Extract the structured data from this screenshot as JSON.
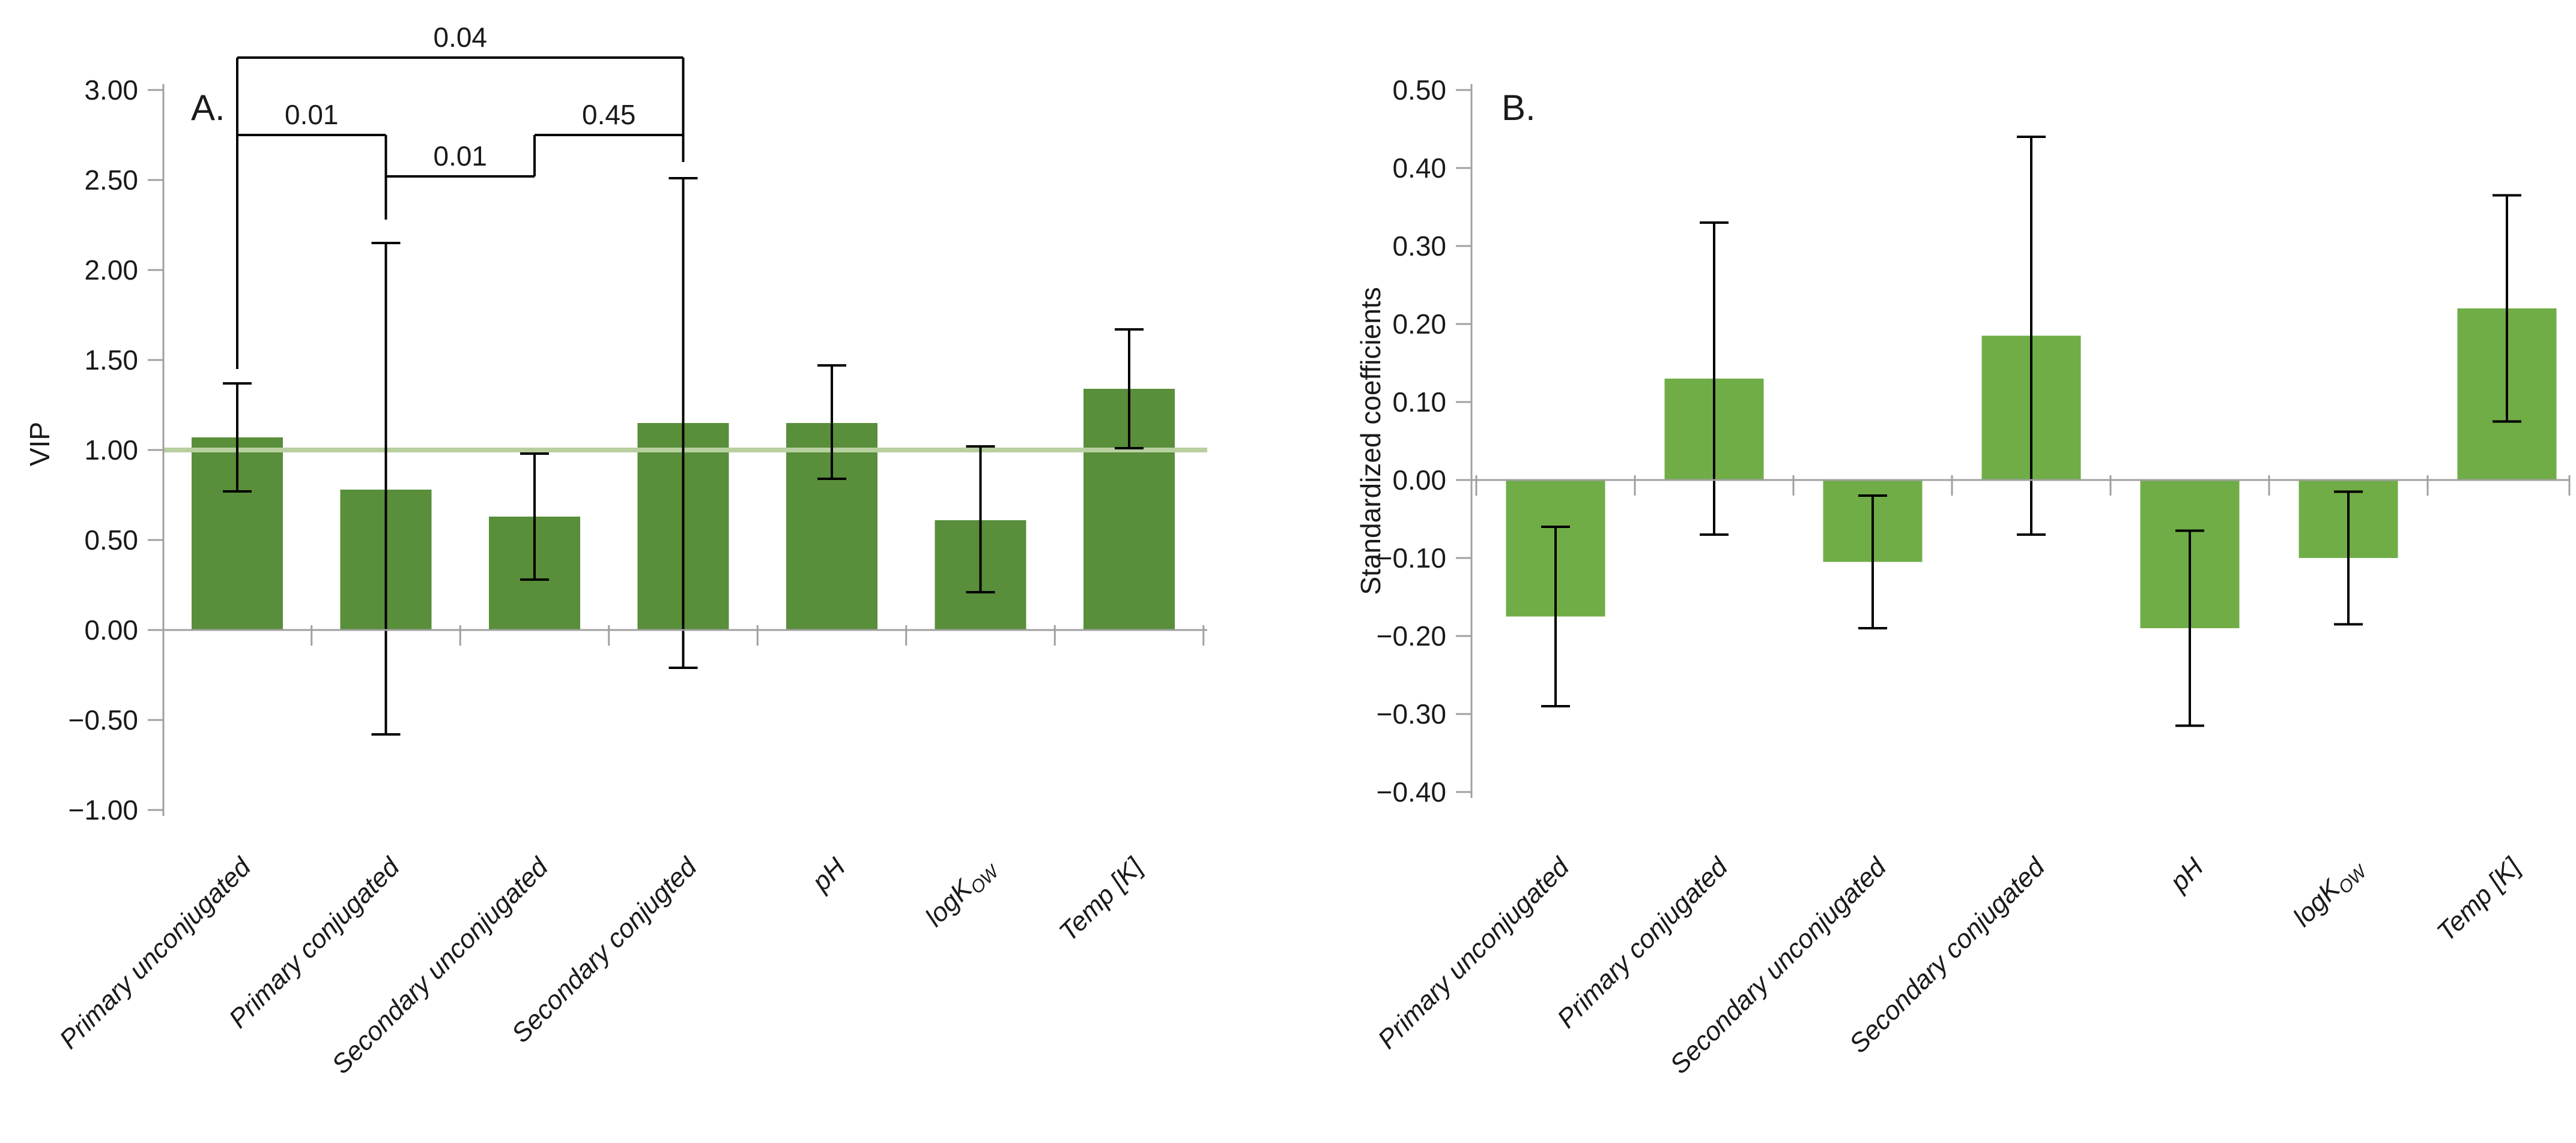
{
  "figure": {
    "background": "#ffffff",
    "axis_color": "#a0a0a0",
    "error_bar_color": "#000000",
    "bracket_color": "#000000"
  },
  "chart_data": [
    {
      "type": "bar",
      "panel_label": "A.",
      "ylabel": "VIP",
      "y_axis": {
        "min": -1.0,
        "max": 3.0,
        "step": 0.5,
        "tick_labels": [
          "3.00",
          "2.50",
          "2.00",
          "1.50",
          "1.00",
          "0.50",
          "0.00",
          "−0.50",
          "−1.00"
        ]
      },
      "categories": [
        {
          "text": "Primary unconjugated"
        },
        {
          "text": "Primary conjugated"
        },
        {
          "text": "Secondary unconjugated"
        },
        {
          "text": "Secondary conjugted"
        },
        {
          "text": "pH"
        },
        {
          "text": "logK",
          "sub": "OW"
        },
        {
          "text": "Temp [K]"
        }
      ],
      "values": [
        1.07,
        0.78,
        0.63,
        1.15,
        1.15,
        0.61,
        1.34
      ],
      "error_low": [
        0.77,
        -0.58,
        0.28,
        -0.21,
        0.84,
        0.21,
        1.01
      ],
      "error_high": [
        1.37,
        2.15,
        0.98,
        2.51,
        1.47,
        1.02,
        1.67
      ],
      "bar_color": "#598e3a",
      "reference_line": {
        "value": 1.0,
        "color": "#b8cfa0"
      },
      "significance_brackets": [
        {
          "label": "0.04",
          "from": 0,
          "to": 3,
          "y": 3.18
        },
        {
          "label": "0.01",
          "from": 0,
          "to": 1,
          "y": 2.75
        },
        {
          "label": "0.01",
          "from": 1,
          "to": 2,
          "y": 2.52
        },
        {
          "label": "0.45",
          "from": 2,
          "to": 3,
          "y": 2.75
        }
      ],
      "bracket_legs": [
        {
          "bar": 0,
          "y1": 3.18,
          "y2": 1.45
        },
        {
          "bar": 1,
          "y1": 2.75,
          "y2": 2.28
        },
        {
          "bar": 2,
          "y1": 2.75,
          "y2": 2.52
        },
        {
          "bar": 3,
          "y1": 3.18,
          "y2": 2.6
        }
      ]
    },
    {
      "type": "bar",
      "panel_label": "B.",
      "ylabel": "Standardized coefficients",
      "y_axis": {
        "min": -0.4,
        "max": 0.5,
        "step": 0.1,
        "tick_labels": [
          "0.50",
          "0.40",
          "0.30",
          "0.20",
          "0.10",
          "0.00",
          "−0.10",
          "−0.20",
          "−0.30",
          "−0.40"
        ]
      },
      "categories": [
        {
          "text": "Primary unconjugated"
        },
        {
          "text": "Primary conjugated"
        },
        {
          "text": "Secondary unconjugated"
        },
        {
          "text": "Secondary conjugated"
        },
        {
          "text": "pH"
        },
        {
          "text": "logK",
          "sub": "OW"
        },
        {
          "text": "Temp [K]"
        }
      ],
      "values": [
        -0.175,
        0.13,
        -0.105,
        0.185,
        -0.19,
        -0.1,
        0.22
      ],
      "error_low": [
        -0.29,
        -0.07,
        -0.19,
        -0.07,
        -0.315,
        -0.185,
        0.075
      ],
      "error_high": [
        -0.06,
        0.33,
        -0.02,
        0.44,
        -0.065,
        -0.015,
        0.365
      ],
      "bar_color": "#70ad47"
    }
  ]
}
